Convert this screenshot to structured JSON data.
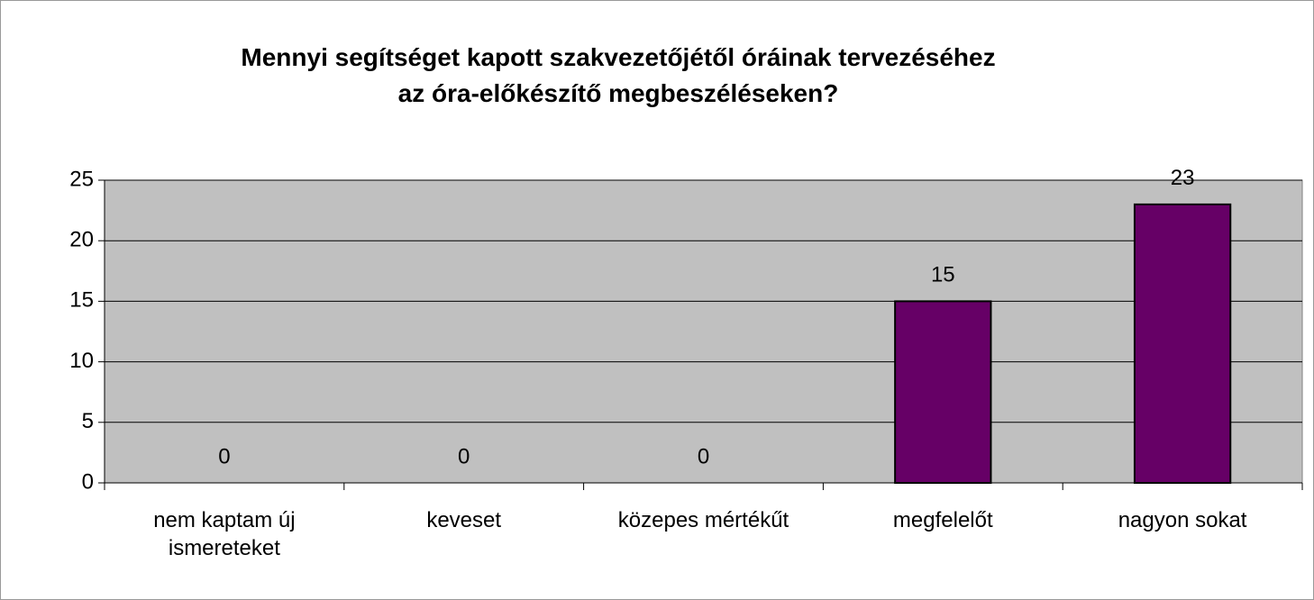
{
  "chart_data": {
    "type": "bar",
    "title": "Mennyi segítséget kapott szakvezetőjétől óráinak tervezéséhez az óra-előkészítő megbeszéléseken?",
    "categories": [
      "nem kaptam új ismereteket",
      "keveset",
      "közepes mértékűt",
      "megfelelőt",
      "nagyon sokat"
    ],
    "values": [
      0,
      0,
      0,
      15,
      23
    ],
    "color": "#660066",
    "ylim": [
      0,
      25
    ],
    "yticks": [
      0,
      5,
      10,
      15,
      20,
      25
    ],
    "grid": true
  }
}
